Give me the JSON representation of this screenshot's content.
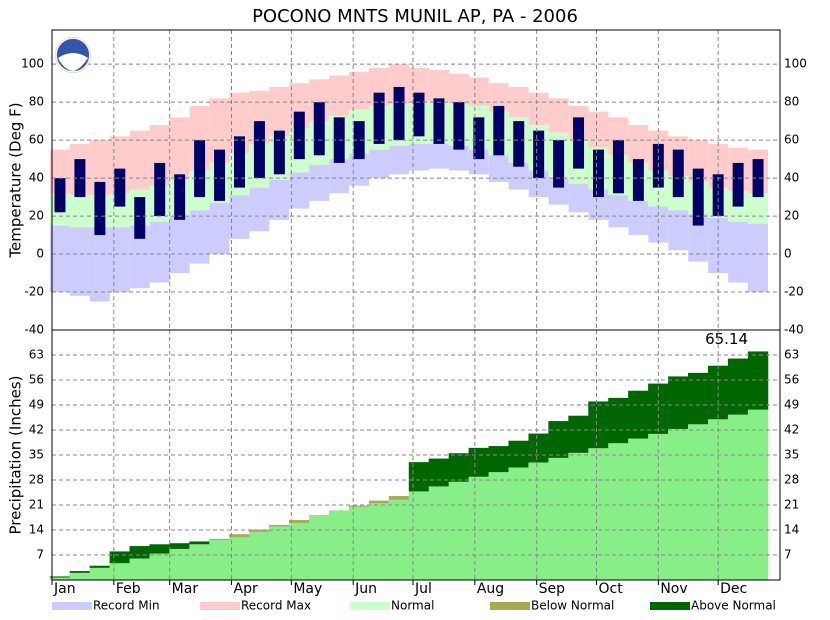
{
  "title": "POCONO MNTS MUNIL AP, PA - 2006",
  "legend": [
    {
      "name": "Record Min",
      "color": "#ccccff"
    },
    {
      "name": "Record Max",
      "color": "#ffcccc"
    },
    {
      "name": "Normal",
      "color": "#ccffcc"
    },
    {
      "name": "Below Normal",
      "color": "#aaaa55"
    },
    {
      "name": "Above Normal",
      "color": "#006600"
    }
  ],
  "chart_data": [
    {
      "type": "temperature",
      "ylabel": "Temperature (Deg F)",
      "ylim": [
        -40,
        118
      ],
      "yticks": [
        -40,
        -20,
        0,
        20,
        40,
        60,
        80,
        100
      ],
      "xlim": [
        1,
        366
      ],
      "xticks": [
        {
          "value": 1,
          "label": "Jan"
        },
        {
          "value": 32,
          "label": "Feb"
        },
        {
          "value": 60,
          "label": "Mar"
        },
        {
          "value": 91,
          "label": "Apr"
        },
        {
          "value": 121,
          "label": "May"
        },
        {
          "value": 152,
          "label": "Jun"
        },
        {
          "value": 182,
          "label": "Jul"
        },
        {
          "value": 213,
          "label": "Aug"
        },
        {
          "value": 244,
          "label": "Sep"
        },
        {
          "value": 274,
          "label": "Oct"
        },
        {
          "value": 305,
          "label": "Nov"
        },
        {
          "value": 335,
          "label": "Dec"
        }
      ],
      "grid": true,
      "x": [
        5,
        15,
        25,
        35,
        45,
        55,
        65,
        75,
        85,
        95,
        105,
        115,
        125,
        135,
        145,
        155,
        165,
        175,
        185,
        195,
        205,
        215,
        225,
        235,
        245,
        255,
        265,
        275,
        285,
        295,
        305,
        315,
        325,
        335,
        345,
        355
      ],
      "record_max": {
        "color": "#ffcccc",
        "values": [
          55,
          58,
          60,
          62,
          65,
          68,
          72,
          78,
          82,
          85,
          86,
          88,
          90,
          92,
          94,
          96,
          98,
          100,
          98,
          97,
          95,
          93,
          90,
          88,
          85,
          82,
          78,
          75,
          72,
          68,
          65,
          62,
          60,
          58,
          56,
          55
        ]
      },
      "record_min": {
        "color": "#ccccff",
        "values": [
          -20,
          -22,
          -25,
          -20,
          -18,
          -15,
          -10,
          -5,
          0,
          8,
          12,
          18,
          24,
          28,
          32,
          36,
          40,
          42,
          44,
          45,
          44,
          42,
          38,
          34,
          30,
          26,
          22,
          18,
          14,
          10,
          6,
          2,
          -4,
          -10,
          -15,
          -20
        ]
      },
      "normal": {
        "color": "#ccffcc",
        "high": [
          32,
          31,
          31,
          32,
          34,
          36,
          40,
          44,
          48,
          53,
          58,
          62,
          66,
          70,
          73,
          76,
          78,
          79,
          80,
          80,
          79,
          78,
          75,
          72,
          68,
          64,
          60,
          56,
          52,
          48,
          44,
          41,
          38,
          35,
          33,
          32
        ],
        "low": [
          15,
          14,
          14,
          14,
          15,
          17,
          20,
          23,
          27,
          31,
          35,
          39,
          43,
          47,
          50,
          53,
          55,
          57,
          58,
          58,
          57,
          55,
          52,
          48,
          44,
          40,
          37,
          34,
          31,
          28,
          25,
          23,
          21,
          19,
          17,
          16
        ]
      },
      "observed": {
        "color": "#000066",
        "high": [
          40,
          50,
          38,
          45,
          30,
          48,
          42,
          60,
          55,
          62,
          70,
          65,
          75,
          80,
          72,
          70,
          85,
          88,
          85,
          82,
          80,
          72,
          78,
          70,
          65,
          60,
          72,
          55,
          60,
          50,
          58,
          55,
          45,
          42,
          48,
          50
        ],
        "low": [
          22,
          30,
          10,
          25,
          8,
          20,
          18,
          30,
          28,
          35,
          40,
          42,
          50,
          52,
          48,
          50,
          58,
          60,
          62,
          58,
          55,
          50,
          52,
          46,
          40,
          35,
          45,
          30,
          32,
          28,
          35,
          30,
          15,
          20,
          25,
          30
        ]
      }
    },
    {
      "type": "precipitation",
      "ylabel": "Precipitation (Inches)",
      "ylim": [
        0,
        70
      ],
      "yticks": [
        7,
        14,
        21,
        28,
        35,
        42,
        49,
        56,
        63
      ],
      "xlim": [
        1,
        366
      ],
      "grid": true,
      "annotation": "65.14",
      "x": [
        5,
        15,
        25,
        35,
        45,
        55,
        65,
        75,
        85,
        95,
        105,
        115,
        125,
        135,
        145,
        155,
        165,
        175,
        185,
        195,
        205,
        215,
        225,
        235,
        245,
        255,
        265,
        275,
        285,
        295,
        305,
        315,
        325,
        335,
        345,
        355
      ],
      "normal": {
        "color": "#88ee88",
        "values": [
          0.7,
          2,
          3.4,
          4.7,
          6,
          7.4,
          8.7,
          10,
          11.4,
          12.8,
          14.1,
          15.4,
          16.8,
          18.1,
          19.5,
          20.8,
          22.2,
          23.5,
          24.8,
          26.2,
          27.5,
          28.9,
          30.2,
          31.5,
          32.9,
          34.2,
          35.6,
          36.9,
          38.3,
          39.6,
          40.9,
          42.3,
          43.6,
          45,
          46.3,
          47.7
        ]
      },
      "observed": {
        "above_color": "#006600",
        "below_color": "#aaaa55",
        "values": [
          1,
          2.5,
          4,
          8,
          9.5,
          10,
          10.3,
          10.8,
          11.5,
          12,
          13.5,
          15,
          16,
          18,
          19.5,
          20.5,
          21.5,
          22.5,
          33,
          34,
          35.5,
          37,
          37.5,
          39,
          41,
          44.5,
          46,
          50,
          51,
          53,
          55,
          57,
          58,
          60,
          62,
          64
        ]
      }
    }
  ]
}
